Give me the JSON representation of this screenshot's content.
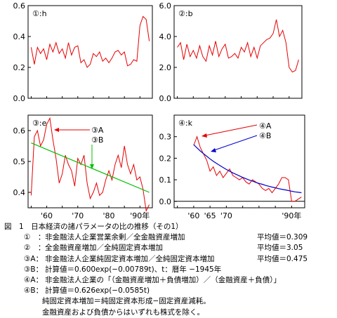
{
  "colors": {
    "series": "#e60000",
    "fit": "#00c000",
    "callout": "#e60000",
    "fit2": "#0000d0",
    "axis": "#000000"
  },
  "chart_data": [
    {
      "type": "line",
      "label": "①:h",
      "ylim": [
        0.0,
        0.6
      ],
      "yticks": [
        "0.6",
        "0.4",
        "0.2",
        "0.0"
      ],
      "xticks": [],
      "xlim": [
        1954,
        1994
      ],
      "series": [
        {
          "x": [
            1955,
            1956,
            1957,
            1958,
            1959,
            1960,
            1961,
            1962,
            1963,
            1964,
            1965,
            1966,
            1967,
            1968,
            1969,
            1970,
            1971,
            1972,
            1973,
            1974,
            1975,
            1976,
            1977,
            1978,
            1979,
            1980,
            1981,
            1982,
            1983,
            1984,
            1985,
            1986,
            1987,
            1988,
            1989,
            1990,
            1991,
            1992,
            1993
          ],
          "values": [
            0.33,
            0.22,
            0.33,
            0.29,
            0.32,
            0.25,
            0.35,
            0.3,
            0.36,
            0.29,
            0.32,
            0.26,
            0.36,
            0.28,
            0.33,
            0.34,
            0.23,
            0.25,
            0.2,
            0.22,
            0.29,
            0.27,
            0.3,
            0.24,
            0.26,
            0.23,
            0.26,
            0.3,
            0.31,
            0.28,
            0.3,
            0.21,
            0.22,
            0.25,
            0.24,
            0.47,
            0.53,
            0.51,
            0.37
          ]
        }
      ]
    },
    {
      "type": "line",
      "label": "②:b",
      "ylim": [
        0.0,
        6.0
      ],
      "yticks": [
        "6.0",
        "4.0",
        "2.0",
        "0.0"
      ],
      "xticks": [],
      "xlim": [
        1954,
        1994
      ],
      "series": [
        {
          "x": [
            1955,
            1956,
            1957,
            1958,
            1959,
            1960,
            1961,
            1962,
            1963,
            1964,
            1965,
            1966,
            1967,
            1968,
            1969,
            1970,
            1971,
            1972,
            1973,
            1974,
            1975,
            1976,
            1977,
            1978,
            1979,
            1980,
            1981,
            1982,
            1983,
            1984,
            1985,
            1986,
            1987,
            1988,
            1989,
            1990,
            1991,
            1992,
            1993
          ],
          "values": [
            3.3,
            3.6,
            2.5,
            3.5,
            2.7,
            3.1,
            2.6,
            3.4,
            2.7,
            2.4,
            3.4,
            2.8,
            3.7,
            2.7,
            3.2,
            3.5,
            2.6,
            2.7,
            2.9,
            2.6,
            3.3,
            3.0,
            3.6,
            2.7,
            3.3,
            2.6,
            3.4,
            3.6,
            3.8,
            3.9,
            4.2,
            5.1,
            4.0,
            4.4,
            3.6,
            2.0,
            1.7,
            1.8,
            2.5
          ]
        }
      ]
    },
    {
      "type": "line",
      "label": "③:e",
      "ylim": [
        0.35,
        0.65
      ],
      "yticks": [
        "0.6",
        "0.5",
        "0.4"
      ],
      "xticks": [
        "'60",
        "'70",
        "'80",
        "'90年"
      ],
      "xlim": [
        1954,
        1994
      ],
      "series": [
        {
          "x": [
            1955,
            1956,
            1957,
            1958,
            1959,
            1960,
            1961,
            1962,
            1963,
            1964,
            1965,
            1966,
            1967,
            1968,
            1969,
            1970,
            1971,
            1972,
            1973,
            1974,
            1975,
            1976,
            1977,
            1978,
            1979,
            1980,
            1981,
            1982,
            1983,
            1984,
            1985,
            1986,
            1987,
            1988,
            1989,
            1990,
            1991,
            1992,
            1993
          ],
          "values": [
            0.39,
            0.58,
            0.6,
            0.55,
            0.57,
            0.62,
            0.64,
            0.57,
            0.51,
            0.43,
            0.46,
            0.52,
            0.49,
            0.47,
            0.42,
            0.51,
            0.49,
            0.52,
            0.43,
            0.38,
            0.4,
            0.43,
            0.39,
            0.4,
            0.44,
            0.47,
            0.44,
            0.49,
            0.52,
            0.48,
            0.55,
            0.49,
            0.46,
            0.49,
            0.44,
            0.45,
            0.41,
            0.34,
            0.36
          ]
        },
        {
          "type": "fit",
          "x": [
            1955,
            1993
          ],
          "values": [
            0.56,
            0.4
          ]
        }
      ],
      "annotations": [
        "③A",
        "③B"
      ]
    },
    {
      "type": "line",
      "label": "④:k",
      "ylim": [
        -0.03,
        0.4
      ],
      "yticks": [
        "0.3",
        "0.2",
        "0.1",
        "0.0"
      ],
      "xticks": [
        "'60",
        "'65",
        "'70",
        "'90年"
      ],
      "xlim": [
        1954,
        1994
      ],
      "series": [
        {
          "x": [
            1960,
            1961,
            1962,
            1963,
            1964,
            1965,
            1966,
            1967,
            1968,
            1969,
            1970,
            1971,
            1972,
            1973,
            1974,
            1975,
            1976,
            1977,
            1978,
            1979,
            1980,
            1981,
            1982,
            1983,
            1984,
            1985,
            1986,
            1987,
            1988,
            1989,
            1990,
            1991,
            1992,
            1993
          ],
          "values": [
            0.26,
            0.3,
            0.25,
            0.22,
            0.19,
            0.14,
            0.16,
            0.12,
            0.14,
            0.11,
            0.13,
            0.15,
            0.12,
            0.11,
            0.1,
            0.11,
            0.09,
            0.08,
            0.1,
            0.09,
            0.08,
            0.06,
            0.05,
            0.06,
            0.04,
            0.06,
            0.08,
            0.11,
            0.11,
            0.1,
            0.0,
            0.0,
            0.01,
            0.02
          ]
        },
        {
          "type": "fit",
          "x": [
            1960,
            1961,
            1962,
            1963,
            1964,
            1965,
            1966,
            1967,
            1968,
            1969,
            1970,
            1971,
            1972,
            1973,
            1974,
            1975,
            1976,
            1977,
            1978,
            1979,
            1980,
            1981,
            1982,
            1983,
            1984,
            1985,
            1986,
            1987,
            1988,
            1989,
            1990,
            1991,
            1992,
            1993
          ],
          "values": [
            0.263,
            0.248,
            0.234,
            0.221,
            0.209,
            0.197,
            0.186,
            0.176,
            0.166,
            0.157,
            0.148,
            0.14,
            0.132,
            0.125,
            0.118,
            0.111,
            0.105,
            0.099,
            0.094,
            0.088,
            0.083,
            0.079,
            0.074,
            0.07,
            0.066,
            0.063,
            0.059,
            0.056,
            0.053,
            0.05,
            0.047,
            0.044,
            0.042,
            0.04
          ]
        }
      ],
      "annotations": [
        "④A",
        "④B"
      ]
    }
  ],
  "caption": {
    "title": "図　1　日本経済の諸パラメータの比の推移（その1）",
    "notes": [
      {
        "key": "①　：",
        "desc": "非金融法人企業営業余剰／全金融資産増加",
        "avg": "平均値＝0.309"
      },
      {
        "key": "②　：",
        "desc": "全金融資産増加／全純固定資本増加",
        "avg": "平均値＝3.05"
      },
      {
        "key": "③A：",
        "desc": "非金融法人企業純固定資本増加／全純固定資本増加",
        "avg": "平均値＝0.475"
      },
      {
        "key": "③B：",
        "desc": "計算値＝0.600exp(−0.00789t)、t：暦年 −1945年",
        "avg": ""
      },
      {
        "key": "④A：",
        "desc": "非金融法人企業の「（金融資産増加＋負債増加）／（金融資産＋負債）」",
        "avg": ""
      },
      {
        "key": "④B：",
        "desc": "計算値＝0.626exp(−0.0585t)",
        "avg": ""
      }
    ],
    "extra": [
      "純固定資本増加＝純固定資本形成−固定資産減耗。",
      "金融資産および負債からはいずれも株式を除く。"
    ]
  }
}
